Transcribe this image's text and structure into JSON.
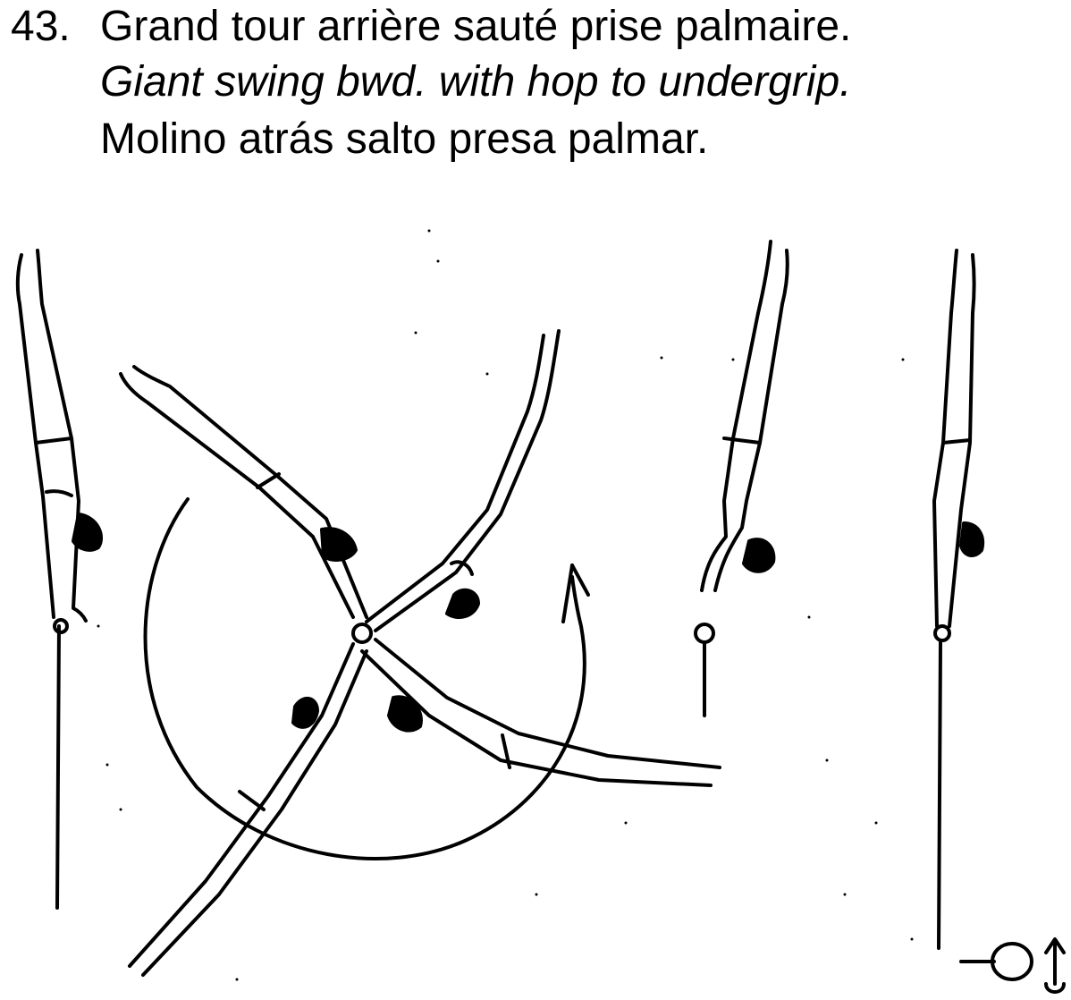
{
  "element": {
    "number": "43.",
    "name_fr": "Grand tour arrière sauté prise palmaire.",
    "name_en": "Giant swing bwd. with hop to undergrip.",
    "name_es": "Molino atrás salto presa palmar."
  },
  "colors": {
    "ink": "#000000",
    "paper": "#ffffff"
  },
  "symbols": [
    "bar-grip-symbol",
    "upward-arrow-symbol"
  ]
}
